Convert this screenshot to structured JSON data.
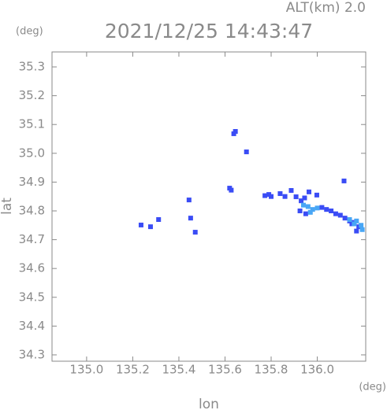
{
  "chart_data": {
    "type": "scatter",
    "title": "2021/12/25 14:43:47",
    "subtitle": "ALT(km) 2.0",
    "y_unit": "(deg)",
    "x_unit": "(deg)",
    "x_label": "lon",
    "y_label": "lat",
    "xlim": [
      134.85,
      136.21
    ],
    "ylim": [
      34.278,
      35.352
    ],
    "xticks": [
      {
        "value": 135,
        "label": "135.0"
      },
      135.2,
      135.4,
      135.6,
      135.8,
      {
        "value": 136,
        "label": "136.0"
      }
    ],
    "yticks": [
      34.3,
      34.4,
      34.5,
      34.6,
      34.7,
      34.8,
      34.9,
      {
        "value": 35,
        "label": "35.0"
      },
      35.1,
      35.2,
      35.3
    ],
    "grid": false,
    "series": [
      {
        "color": "#3a4cf5",
        "x": [
          135.645,
          135.638,
          135.693,
          135.62,
          135.627,
          135.444,
          135.451,
          135.471,
          135.312,
          135.277,
          135.236,
          135.773,
          135.79,
          135.8,
          135.839,
          135.86,
          135.887,
          135.908,
          135.93,
          135.945,
          135.964,
          135.998,
          136.116,
          136.02,
          136.04,
          136.06,
          136.08,
          136.1,
          136.12,
          136.14,
          136.16,
          136.18,
          136.17,
          136.15,
          135.925,
          135.95
        ],
        "y": [
          35.076,
          35.068,
          35.005,
          34.879,
          34.872,
          34.838,
          34.775,
          34.726,
          34.77,
          34.745,
          34.751,
          34.853,
          34.857,
          34.85,
          34.86,
          34.85,
          34.871,
          34.849,
          34.835,
          34.845,
          34.866,
          34.855,
          34.904,
          34.812,
          34.805,
          34.8,
          34.79,
          34.785,
          34.775,
          34.765,
          34.76,
          34.745,
          34.73,
          34.755,
          34.8,
          34.79
        ]
      },
      {
        "color": "#48a6f5",
        "x": [
          135.94,
          135.96,
          135.98,
          136.0,
          135.97,
          136.14,
          136.17,
          136.19,
          136.195,
          136.16
        ],
        "y": [
          34.82,
          34.815,
          34.805,
          34.81,
          34.795,
          34.77,
          34.765,
          34.75,
          34.735,
          34.755
        ]
      }
    ]
  }
}
